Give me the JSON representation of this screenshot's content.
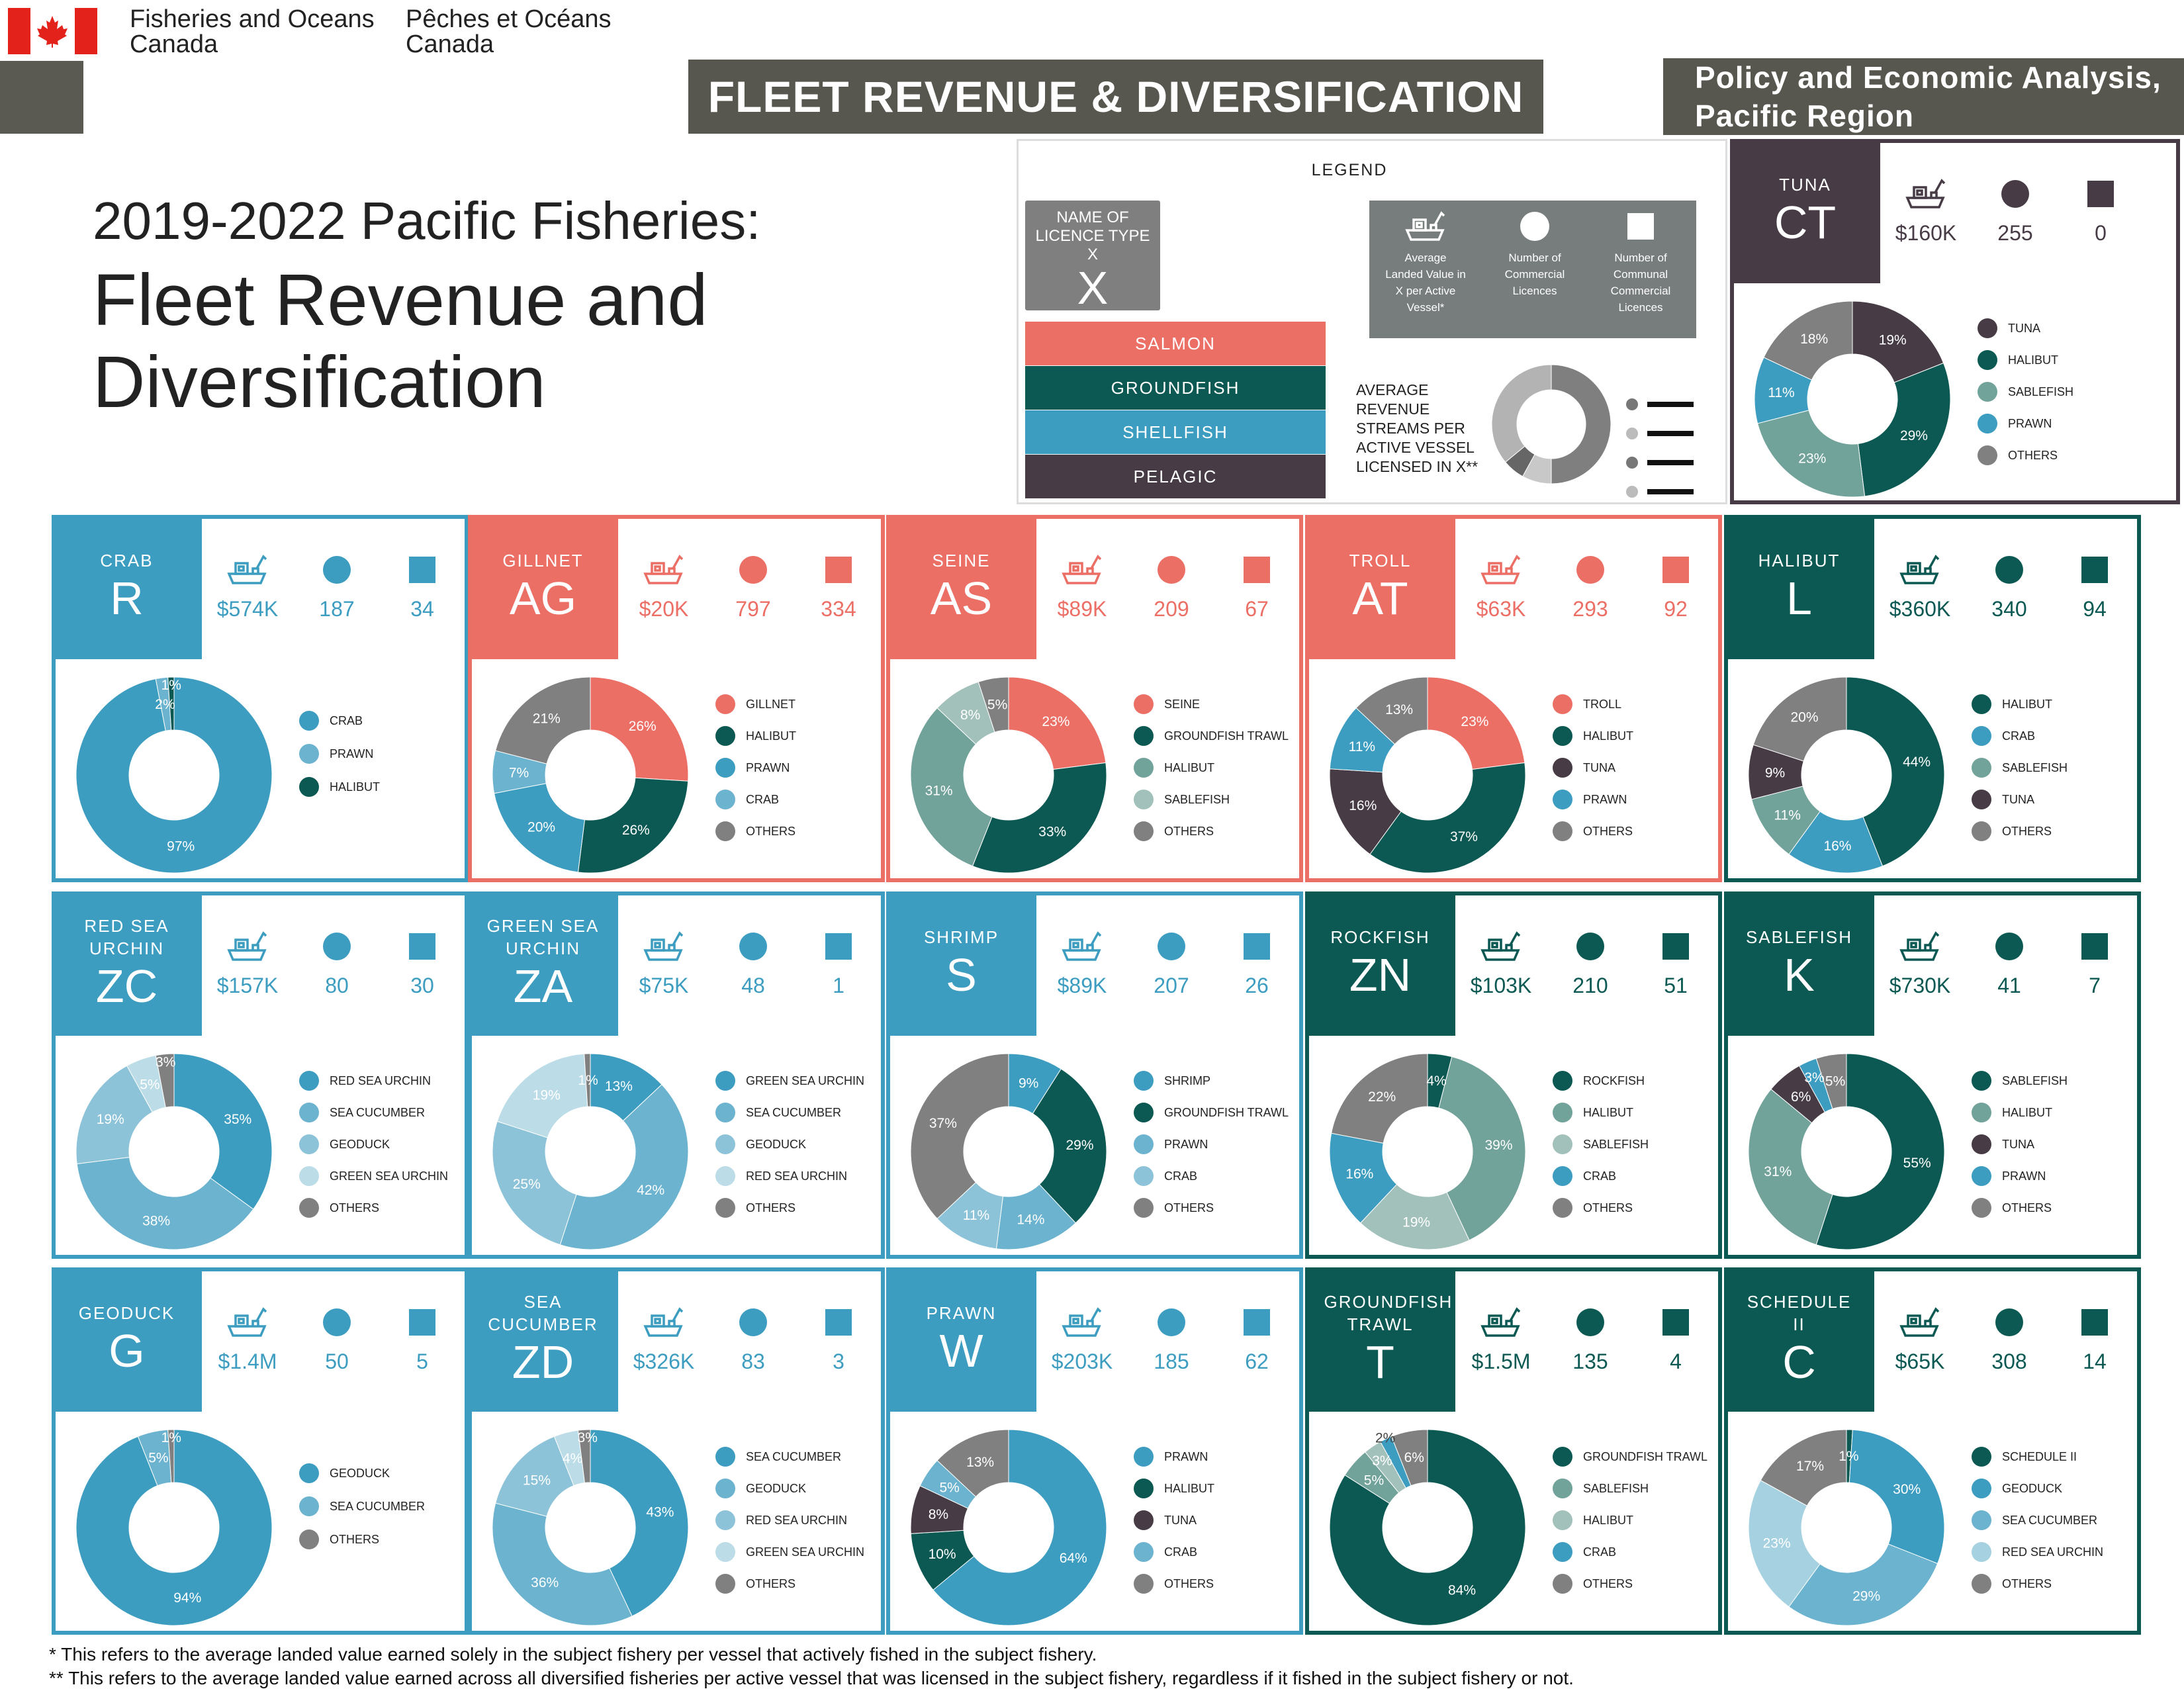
{
  "header": {
    "dept_en_line1": "Fisheries and Oceans",
    "dept_en_line2": "Canada",
    "dept_fr_line1": "Pêches et Océans",
    "dept_fr_line2": "Canada",
    "banner": "FLEET REVENUE & DIVERSIFICATION",
    "region_line1": "Policy and Economic Analysis,",
    "region_line2": "Pacific Region",
    "title_line1": "2019-2022 Pacific Fisheries:",
    "title_line2": "Fleet Revenue and Diversification"
  },
  "colors": {
    "salmon": "#ec6f66",
    "groundfish": "#0c5953",
    "shellfish": "#3d9dc1",
    "pelagic": "#473c46",
    "others": "#808080"
  },
  "legend": {
    "title": "LEGEND",
    "licence_label": "NAME OF LICENCE TYPE X",
    "licence_code": "X",
    "categories": [
      {
        "key": "salmon",
        "label": "SALMON"
      },
      {
        "key": "groundfish",
        "label": "GROUNDFISH"
      },
      {
        "key": "shellfish",
        "label": "SHELLFISH"
      },
      {
        "key": "pelagic",
        "label": "PELAGIC"
      }
    ],
    "icon_captions": [
      "Average Landed Value in X per Active Vessel*",
      "Number of Commercial Licences",
      "Number of Communal Commercial Licences"
    ],
    "donut_caption": "AVERAGE REVENUE STREAMS PER ACTIVE VESSEL LICENSED IN X**"
  },
  "panels": [
    {
      "id": "tuna",
      "category": "pelagic",
      "name": "TUNA",
      "code": "CT",
      "avg_value": "$160K",
      "commercial": "255",
      "communal": "0",
      "slices": [
        {
          "label": "TUNA",
          "pct": 19,
          "color": "#473c46"
        },
        {
          "label": "HALIBUT",
          "pct": 29,
          "color": "#0c5953"
        },
        {
          "label": "SABLEFISH",
          "pct": 23,
          "color": "#72a39b"
        },
        {
          "label": "PRAWN",
          "pct": 11,
          "color": "#3d9dc1"
        },
        {
          "label": "OTHERS",
          "pct": 18,
          "color": "#808080"
        }
      ]
    },
    {
      "id": "crab",
      "category": "shellfish",
      "name": "CRAB",
      "code": "R",
      "avg_value": "$574K",
      "commercial": "187",
      "communal": "34",
      "slices": [
        {
          "label": "CRAB",
          "pct": 97,
          "color": "#3d9dc1"
        },
        {
          "label": "PRAWN",
          "pct": 2,
          "color": "#6cb3cf"
        },
        {
          "label": "HALIBUT",
          "pct": 1,
          "color": "#0c5953"
        }
      ]
    },
    {
      "id": "gillnet",
      "category": "salmon",
      "name": "GILLNET",
      "code": "AG",
      "avg_value": "$20K",
      "commercial": "797",
      "communal": "334",
      "slices": [
        {
          "label": "GILLNET",
          "pct": 26,
          "color": "#ec6f66"
        },
        {
          "label": "HALIBUT",
          "pct": 26,
          "color": "#0c5953"
        },
        {
          "label": "PRAWN",
          "pct": 20,
          "color": "#3d9dc1"
        },
        {
          "label": "CRAB",
          "pct": 7,
          "color": "#6cb3cf"
        },
        {
          "label": "OTHERS",
          "pct": 21,
          "color": "#808080"
        }
      ]
    },
    {
      "id": "seine",
      "category": "salmon",
      "name": "SEINE",
      "code": "AS",
      "avg_value": "$89K",
      "commercial": "209",
      "communal": "67",
      "slices": [
        {
          "label": "SEINE",
          "pct": 23,
          "color": "#ec6f66"
        },
        {
          "label": "GROUNDFISH TRAWL",
          "pct": 33,
          "color": "#0c5953"
        },
        {
          "label": "HALIBUT",
          "pct": 31,
          "color": "#72a39b"
        },
        {
          "label": "SABLEFISH",
          "pct": 8,
          "color": "#a3c1bb"
        },
        {
          "label": "OTHERS",
          "pct": 5,
          "color": "#808080"
        }
      ]
    },
    {
      "id": "troll",
      "category": "salmon",
      "name": "TROLL",
      "code": "AT",
      "avg_value": "$63K",
      "commercial": "293",
      "communal": "92",
      "slices": [
        {
          "label": "TROLL",
          "pct": 23,
          "color": "#ec6f66"
        },
        {
          "label": "HALIBUT",
          "pct": 37,
          "color": "#0c5953"
        },
        {
          "label": "TUNA",
          "pct": 16,
          "color": "#473c46"
        },
        {
          "label": "PRAWN",
          "pct": 11,
          "color": "#3d9dc1"
        },
        {
          "label": "OTHERS",
          "pct": 13,
          "color": "#808080"
        }
      ]
    },
    {
      "id": "halibut",
      "category": "groundfish",
      "name": "HALIBUT",
      "code": "L",
      "avg_value": "$360K",
      "commercial": "340",
      "communal": "94",
      "slices": [
        {
          "label": "HALIBUT",
          "pct": 44,
          "color": "#0c5953"
        },
        {
          "label": "CRAB",
          "pct": 16,
          "color": "#3d9dc1"
        },
        {
          "label": "SABLEFISH",
          "pct": 11,
          "color": "#72a39b"
        },
        {
          "label": "TUNA",
          "pct": 9,
          "color": "#473c46"
        },
        {
          "label": "OTHERS",
          "pct": 20,
          "color": "#808080"
        }
      ]
    },
    {
      "id": "red-sea-urchin",
      "category": "shellfish",
      "name": "RED SEA URCHIN",
      "code": "ZC",
      "avg_value": "$157K",
      "commercial": "80",
      "communal": "30",
      "slices": [
        {
          "label": "RED SEA URCHIN",
          "pct": 35,
          "color": "#3d9dc1"
        },
        {
          "label": "SEA CUCUMBER",
          "pct": 38,
          "color": "#6cb3cf"
        },
        {
          "label": "GEODUCK",
          "pct": 19,
          "color": "#8cc3d8"
        },
        {
          "label": "GREEN SEA URCHIN",
          "pct": 5,
          "color": "#bcdde8"
        },
        {
          "label": "OTHERS",
          "pct": 3,
          "color": "#808080"
        }
      ]
    },
    {
      "id": "green-sea-urchin",
      "category": "shellfish",
      "name": "GREEN SEA URCHIN",
      "code": "ZA",
      "avg_value": "$75K",
      "commercial": "48",
      "communal": "1",
      "slices": [
        {
          "label": "GREEN SEA URCHIN",
          "pct": 13,
          "color": "#3d9dc1"
        },
        {
          "label": "SEA CUCUMBER",
          "pct": 42,
          "color": "#6cb3cf"
        },
        {
          "label": "GEODUCK",
          "pct": 25,
          "color": "#8cc3d8"
        },
        {
          "label": "RED SEA URCHIN",
          "pct": 19,
          "color": "#bcdde8"
        },
        {
          "label": "OTHERS",
          "pct": 1,
          "color": "#808080"
        }
      ]
    },
    {
      "id": "shrimp",
      "category": "shellfish",
      "name": "SHRIMP",
      "code": "S",
      "avg_value": "$89K",
      "commercial": "207",
      "communal": "26",
      "slices": [
        {
          "label": "SHRIMP",
          "pct": 9,
          "color": "#3d9dc1"
        },
        {
          "label": "GROUNDFISH TRAWL",
          "pct": 29,
          "color": "#0c5953"
        },
        {
          "label": "PRAWN",
          "pct": 14,
          "color": "#6cb3cf"
        },
        {
          "label": "CRAB",
          "pct": 11,
          "color": "#8cc3d8"
        },
        {
          "label": "OTHERS",
          "pct": 37,
          "color": "#808080"
        }
      ]
    },
    {
      "id": "rockfish",
      "category": "groundfish",
      "name": "ROCKFISH",
      "code": "ZN",
      "avg_value": "$103K",
      "commercial": "210",
      "communal": "51",
      "slices": [
        {
          "label": "ROCKFISH",
          "pct": 4,
          "color": "#0c5953"
        },
        {
          "label": "HALIBUT",
          "pct": 39,
          "color": "#72a39b"
        },
        {
          "label": "SABLEFISH",
          "pct": 19,
          "color": "#a3c1bb"
        },
        {
          "label": "CRAB",
          "pct": 16,
          "color": "#3d9dc1"
        },
        {
          "label": "OTHERS",
          "pct": 22,
          "color": "#808080"
        }
      ]
    },
    {
      "id": "sablefish",
      "category": "groundfish",
      "name": "SABLEFISH",
      "code": "K",
      "avg_value": "$730K",
      "commercial": "41",
      "communal": "7",
      "slices": [
        {
          "label": "SABLEFISH",
          "pct": 55,
          "color": "#0c5953"
        },
        {
          "label": "HALIBUT",
          "pct": 31,
          "color": "#72a39b"
        },
        {
          "label": "TUNA",
          "pct": 6,
          "color": "#473c46"
        },
        {
          "label": "PRAWN",
          "pct": 3,
          "color": "#3d9dc1"
        },
        {
          "label": "OTHERS",
          "pct": 5,
          "color": "#808080"
        }
      ]
    },
    {
      "id": "geoduck",
      "category": "shellfish",
      "name": "GEODUCK",
      "code": "G",
      "avg_value": "$1.4M",
      "commercial": "50",
      "communal": "5",
      "slices": [
        {
          "label": "GEODUCK",
          "pct": 94,
          "color": "#3d9dc1"
        },
        {
          "label": "SEA CUCUMBER",
          "pct": 5,
          "color": "#6cb3cf"
        },
        {
          "label": "OTHERS",
          "pct": 1,
          "color": "#808080"
        }
      ]
    },
    {
      "id": "sea-cucumber",
      "category": "shellfish",
      "name": "SEA CUCUMBER",
      "code": "ZD",
      "avg_value": "$326K",
      "commercial": "83",
      "communal": "3",
      "slices": [
        {
          "label": "SEA CUCUMBER",
          "pct": 43,
          "color": "#3d9dc1"
        },
        {
          "label": "GEODUCK",
          "pct": 36,
          "color": "#6cb3cf"
        },
        {
          "label": "RED SEA URCHIN",
          "pct": 15,
          "color": "#8cc3d8"
        },
        {
          "label": "GREEN SEA URCHIN",
          "pct": 4,
          "color": "#bcdde8"
        },
        {
          "label": "OTHERS",
          "pct": 3,
          "color": "#808080"
        }
      ]
    },
    {
      "id": "prawn",
      "category": "shellfish",
      "name": "PRAWN",
      "code": "W",
      "avg_value": "$203K",
      "commercial": "185",
      "communal": "62",
      "slices": [
        {
          "label": "PRAWN",
          "pct": 64,
          "color": "#3d9dc1"
        },
        {
          "label": "HALIBUT",
          "pct": 10,
          "color": "#0c5953"
        },
        {
          "label": "TUNA",
          "pct": 8,
          "color": "#473c46"
        },
        {
          "label": "CRAB",
          "pct": 5,
          "color": "#6cb3cf"
        },
        {
          "label": "OTHERS",
          "pct": 13,
          "color": "#808080"
        }
      ]
    },
    {
      "id": "groundfish-trawl",
      "category": "groundfish",
      "name": "GROUNDFISH TRAWL",
      "code": "T",
      "avg_value": "$1.5M",
      "commercial": "135",
      "communal": "4",
      "slices": [
        {
          "label": "GROUNDFISH TRAWL",
          "pct": 84,
          "color": "#0c5953"
        },
        {
          "label": "SABLEFISH",
          "pct": 5,
          "color": "#72a39b"
        },
        {
          "label": "HALIBUT",
          "pct": 3,
          "color": "#a3c1bb"
        },
        {
          "label": "CRAB",
          "pct": 2,
          "color": "#3d9dc1"
        },
        {
          "label": "OTHERS",
          "pct": 6,
          "color": "#808080"
        }
      ]
    },
    {
      "id": "schedule-ii",
      "category": "groundfish",
      "name": "SCHEDULE II",
      "code": "C",
      "avg_value": "$65K",
      "commercial": "308",
      "communal": "14",
      "slices": [
        {
          "label": "SCHEDULE II",
          "pct": 1,
          "color": "#0c5953"
        },
        {
          "label": "GEODUCK",
          "pct": 30,
          "color": "#3d9dc1"
        },
        {
          "label": "SEA CUCUMBER",
          "pct": 29,
          "color": "#6cb3cf"
        },
        {
          "label": "RED SEA URCHIN",
          "pct": 23,
          "color": "#a6d1e0"
        },
        {
          "label": "OTHERS",
          "pct": 17,
          "color": "#808080"
        }
      ]
    }
  ],
  "footnotes": [
    "* This refers to the average landed value earned solely in the subject fishery per vessel that actively fished in the subject fishery.",
    "** This refers to the average landed value earned across all diversified fisheries per active vessel that was licensed in the subject fishery, regardless if it fished in the subject fishery or not."
  ]
}
